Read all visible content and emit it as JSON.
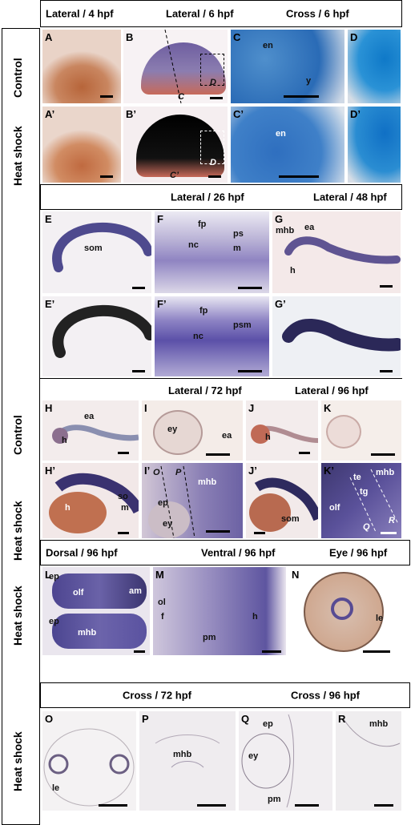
{
  "sections": {
    "s1": {
      "headers": [
        "Lateral / 4 hpf",
        "Lateral / 6 hpf",
        "Cross / 6 hpf"
      ],
      "rows": [
        "Control",
        "Heat shock"
      ]
    },
    "s2": {
      "headers": [
        "Lateral / 26 hpf",
        "Lateral / 48 hpf"
      ]
    },
    "s3": {
      "headers": [
        "Lateral / 72 hpf",
        "Lateral / 96 hpf"
      ],
      "rows": [
        "Control",
        "Heat shock"
      ]
    },
    "s4": {
      "headers": [
        "Dorsal / 96 hpf",
        "Ventral / 96 hpf",
        "Eye / 96 hpf"
      ],
      "rows": [
        "Heat shock"
      ]
    },
    "s5": {
      "headers": [
        "Cross / 72 hpf",
        "Cross / 96 hpf"
      ],
      "rows": [
        "Heat shock"
      ]
    }
  },
  "side_labels": {
    "control": "Control",
    "heat_shock": "Heat shock"
  },
  "panels": {
    "A": "A",
    "B": "B",
    "C": "C",
    "D": "D",
    "A2": "A’",
    "B2": "B’",
    "C2": "C’",
    "D2": "D’",
    "E": "E",
    "F": "F",
    "G": "G",
    "E2": "E’",
    "F2": "F’",
    "G2": "G’",
    "H": "H",
    "I": "I",
    "J": "J",
    "K": "K",
    "H2": "H’",
    "I2": "I’",
    "J2": "J’",
    "K2": "K’",
    "L": "L",
    "M": "M",
    "N": "N",
    "O": "O",
    "P": "P",
    "Q": "Q",
    "R": "R"
  },
  "annotations": {
    "en": "en",
    "y": "y",
    "C": "C",
    "D": "D",
    "C2": "C’",
    "som": "som",
    "fp": "fp",
    "nc": "nc",
    "ps": "ps",
    "m": "m",
    "psm": "psm",
    "mhb": "mhb",
    "ea": "ea",
    "h": "h",
    "ey": "ey",
    "so": "so",
    "O": "O",
    "P": "P",
    "ep": "ep",
    "olf": "olf",
    "te": "te",
    "tg": "tg",
    "Q": "Q",
    "R": "R",
    "am": "am",
    "ol": "ol",
    "f": "f",
    "pm": "pm",
    "le": "le"
  }
}
